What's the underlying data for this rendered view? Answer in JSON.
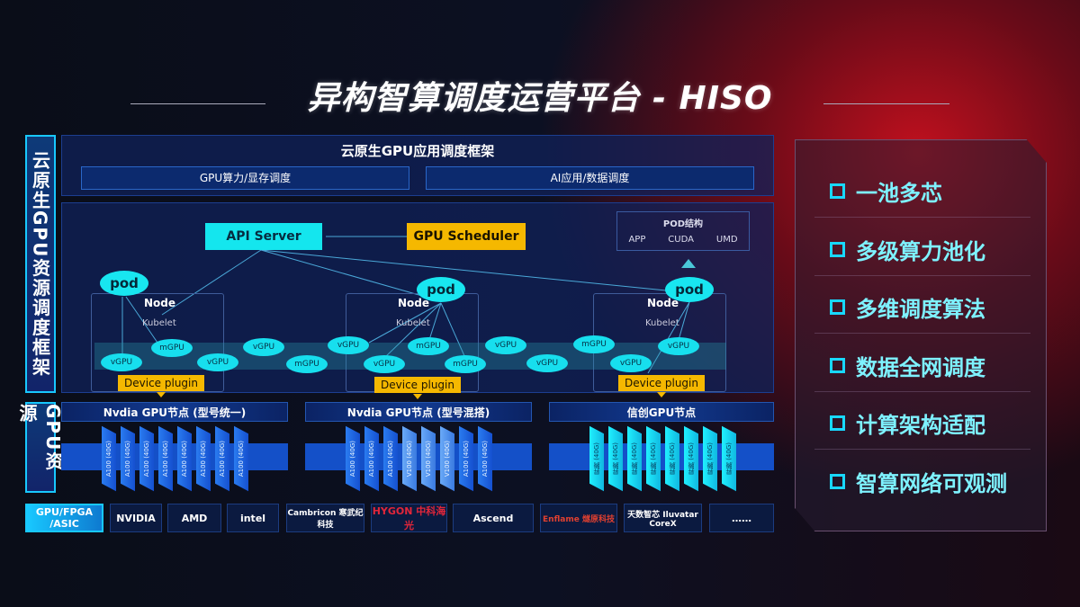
{
  "title": "异构智算调度运营平台 - HISO",
  "left_labels": {
    "framework": "云原生GPU资源调度框架",
    "resources": "GPU资源"
  },
  "framework": {
    "header": "云原生GPU应用调度框架",
    "sub": [
      "GPU算力/显存调度",
      "AI应用/数据调度"
    ]
  },
  "diagram": {
    "api_server": "API Server",
    "gpu_scheduler": "GPU Scheduler",
    "pod_struct": {
      "title": "POD结构",
      "items": [
        "APP",
        "CUDA",
        "UMD"
      ]
    },
    "pod": "pod",
    "node": "Node",
    "kubelet": "Kubelet",
    "device_plugin": "Device plugin",
    "gpus": [
      "vGPU",
      "mGPU",
      "vGPU",
      "vGPU",
      "mGPU",
      "vGPU",
      "vGPU",
      "mGPU",
      "mGPU",
      "vGPU",
      "vGPU",
      "mGPU",
      "vGPU",
      "vGPU"
    ]
  },
  "resource_groups": [
    {
      "title": "Nvdia GPU节点 (型号统一)",
      "chips": [
        "A100 (40G)",
        "A100 (40G)",
        "A100 (40G)",
        "A100 (40G)",
        "A100 (40G)",
        "A100 (40G)",
        "A100 (40G)",
        "A100 (40G)"
      ]
    },
    {
      "title": "Nvdia GPU节点 (型号混搭)",
      "chips": [
        "A100 (40G)",
        "A100 (40G)",
        "A100 (40G)",
        "V100 (40G)",
        "V100 (40G)",
        "V100 (40G)",
        "A100 (40G)",
        "A100 (40G)"
      ]
    },
    {
      "title": "信创GPU节点",
      "chips": [
        "昇腾 (40G)",
        "昇腾 (40G)",
        "昇腾 (40G)",
        "昇腾 (40G)",
        "昇腾 (40G)",
        "昇腾 (40G)",
        "昇腾 (40G)",
        "昇腾 (40G)"
      ]
    }
  ],
  "vendors": {
    "label": "GPU/FPGA /ASIC",
    "items": [
      "NVIDIA",
      "AMD",
      "intel",
      "Cambricon 寒武纪科技",
      "HYGON 中科海光",
      "Ascend",
      "Enflame 燧原科技",
      "天数智芯 Iluvatar CoreX",
      "……"
    ]
  },
  "features": [
    "一池多芯",
    "多级算力池化",
    "多维调度算法",
    "数据全网调度",
    "计算架构适配",
    "智算网络可观测"
  ],
  "colors": {
    "cyan": "#18e6f0",
    "yellow": "#f5b800",
    "blue": "#1450c8",
    "red_glow": "#c0101e"
  }
}
